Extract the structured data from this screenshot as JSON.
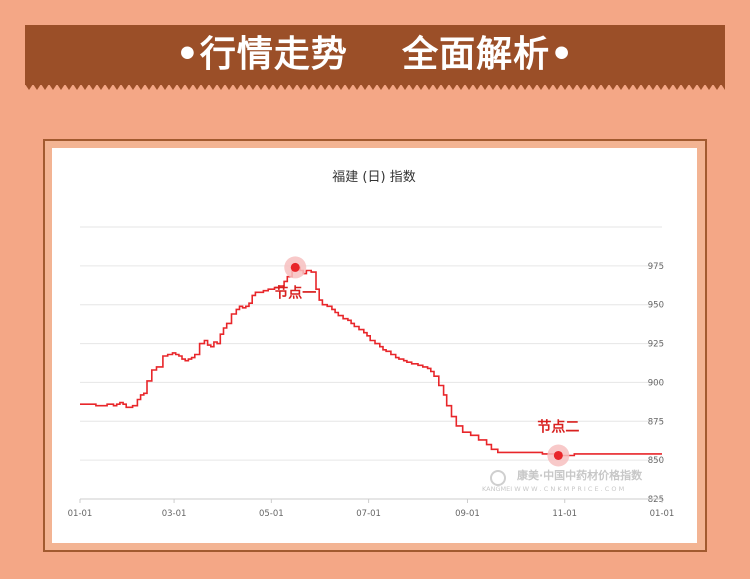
{
  "banner": {
    "title": "•行情走势    全面解析•"
  },
  "colors": {
    "background": "#f4a786",
    "banner": "#9b4f28",
    "line": "#e8262a",
    "highlight": "#f7c0c0"
  },
  "watermark": {
    "brand": "康美·中国中药材价格指数",
    "sub": "KANGMEI  W W W . C N K M P R I C E . C O M"
  },
  "chart_data": {
    "type": "line",
    "title": "福建 (日) 指数",
    "x_tick_labels": [
      "01-01",
      "03-01",
      "05-01",
      "07-01",
      "09-01",
      "11-01",
      "01-01"
    ],
    "y_tick_labels": [
      "825",
      "850",
      "875",
      "900",
      "925",
      "950",
      "975"
    ],
    "ylim": [
      825,
      1000
    ],
    "grid": true,
    "y_axis_side": "right",
    "series": [
      {
        "x": [
          0,
          8,
          10,
          15,
          17,
          19,
          21,
          23,
          25,
          27,
          29,
          31,
          33,
          36,
          38,
          40,
          42,
          45,
          48,
          50,
          52,
          55,
          58,
          60,
          62,
          64,
          66,
          68,
          70,
          72,
          75,
          78,
          80,
          82,
          84,
          86,
          88,
          90,
          92,
          95,
          98,
          100,
          102,
          104,
          106,
          108,
          110,
          112,
          115,
          118,
          120,
          122,
          125,
          128,
          130,
          133,
          135,
          138,
          140,
          142,
          145,
          148,
          150,
          152,
          155,
          158,
          160,
          162,
          165,
          168,
          170,
          172,
          175,
          178,
          180,
          182,
          185,
          188,
          190,
          192,
          195,
          198,
          200,
          203,
          205,
          208,
          210,
          212,
          215,
          218,
          220,
          222,
          225,
          228,
          230,
          233,
          236,
          240,
          245,
          250,
          255,
          258,
          262,
          266,
          270,
          275,
          280,
          285,
          290,
          295,
          300,
          305,
          310,
          315,
          320,
          325,
          330,
          335,
          340,
          345,
          350,
          355,
          360,
          365
        ],
        "values": [
          886,
          886,
          885,
          885,
          886,
          886,
          885,
          886,
          887,
          886,
          884,
          884,
          885,
          889,
          892,
          893,
          901,
          908,
          910,
          910,
          917,
          918,
          919,
          918,
          917,
          915,
          914,
          915,
          916,
          918,
          925,
          927,
          924,
          923,
          926,
          925,
          931,
          935,
          938,
          944,
          947,
          949,
          948,
          949,
          951,
          956,
          958,
          958,
          959,
          960,
          960,
          961,
          962,
          965,
          968,
          972,
          974,
          972,
          970,
          972,
          971,
          960,
          953,
          950,
          949,
          947,
          945,
          943,
          941,
          940,
          938,
          936,
          934,
          932,
          930,
          927,
          925,
          923,
          921,
          920,
          918,
          916,
          915,
          914,
          913,
          912,
          912,
          911,
          910,
          909,
          907,
          904,
          898,
          892,
          885,
          878,
          872,
          868,
          866,
          863,
          860,
          857,
          855,
          855,
          855,
          855,
          855,
          855,
          854,
          854,
          853,
          853,
          854,
          854,
          854,
          854,
          854,
          854,
          854,
          854,
          854,
          854,
          854,
          854
        ]
      }
    ],
    "annotations": [
      {
        "label": "节点一",
        "x": 135,
        "y": 974
      },
      {
        "label": "节点二",
        "x": 300,
        "y": 853
      }
    ]
  }
}
